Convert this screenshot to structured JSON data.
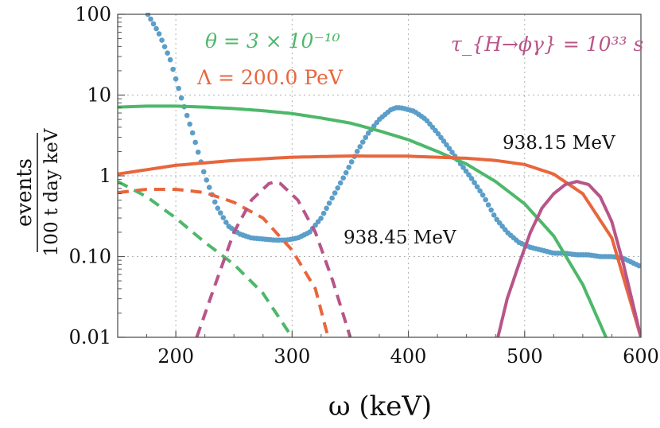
{
  "chart_data": {
    "type": "line",
    "x_label": "ω (keV)",
    "y_label_numerator": "events",
    "y_label_denominator": "100 t day keV",
    "xlim": [
      150,
      600
    ],
    "ylim": [
      0.01,
      100
    ],
    "y_scale": "log",
    "grid": true,
    "x_ticks": [
      {
        "value": 200,
        "label": "200"
      },
      {
        "value": 300,
        "label": "300"
      },
      {
        "value": 400,
        "label": "400"
      },
      {
        "value": 500,
        "label": "500"
      },
      {
        "value": 600,
        "label": "600"
      }
    ],
    "y_ticks": [
      {
        "value": 0.01,
        "label": "0.01"
      },
      {
        "value": 0.1,
        "label": "0.10"
      },
      {
        "value": 1,
        "label": "1"
      },
      {
        "value": 10,
        "label": "10"
      },
      {
        "value": 100,
        "label": "100"
      }
    ],
    "annotations": {
      "theta": "θ = 3 × 10⁻¹⁰",
      "lambda": "Λ = 200.0 PeV",
      "tau": "τ_{H→ϕγ} = 10³³ s",
      "mass_high": "938.15 MeV",
      "mass_low": "938.45 MeV"
    },
    "colors": {
      "data": "#5b9ec9",
      "green": "#4db86a",
      "orange": "#e8663d",
      "magenta": "#b85588"
    },
    "series": [
      {
        "style": "dotted",
        "color": "#5b9ec9",
        "x": [
          176,
          185,
          195,
          205,
          215,
          225,
          235,
          245,
          255,
          265,
          275,
          285,
          295,
          305,
          315,
          325,
          335,
          345,
          355,
          365,
          375,
          385,
          390,
          395,
          405,
          415,
          425,
          435,
          445,
          455,
          465,
          475,
          485,
          495,
          505,
          515,
          525,
          535,
          545,
          555,
          565,
          575,
          585,
          600
        ],
        "y": [
          100,
          60,
          28,
          9,
          3.2,
          1.0,
          0.42,
          0.24,
          0.19,
          0.17,
          0.165,
          0.16,
          0.16,
          0.17,
          0.2,
          0.3,
          0.55,
          1.0,
          1.9,
          3.3,
          5.0,
          6.6,
          7.0,
          6.9,
          6.3,
          5.0,
          3.4,
          2.2,
          1.4,
          0.9,
          0.55,
          0.3,
          0.2,
          0.15,
          0.13,
          0.12,
          0.11,
          0.11,
          0.105,
          0.105,
          0.1,
          0.1,
          0.095,
          0.075
        ]
      },
      {
        "style": "solid",
        "color": "#4db86a",
        "x": [
          150,
          175,
          200,
          225,
          250,
          275,
          300,
          325,
          350,
          375,
          400,
          425,
          450,
          475,
          500,
          525,
          550,
          570
        ],
        "y": [
          7.1,
          7.3,
          7.3,
          7.1,
          6.8,
          6.4,
          5.9,
          5.2,
          4.5,
          3.6,
          2.8,
          2.0,
          1.4,
          0.85,
          0.45,
          0.18,
          0.045,
          0.01
        ]
      },
      {
        "style": "solid",
        "color": "#e8663d",
        "x": [
          150,
          200,
          250,
          300,
          350,
          400,
          450,
          475,
          500,
          525,
          550,
          575,
          600
        ],
        "y": [
          1.05,
          1.35,
          1.55,
          1.7,
          1.76,
          1.75,
          1.65,
          1.55,
          1.38,
          1.05,
          0.6,
          0.17,
          0.01
        ]
      },
      {
        "style": "solid",
        "color": "#b85588",
        "x": [
          477,
          485,
          495,
          505,
          515,
          525,
          535,
          545,
          555,
          565,
          575,
          585,
          595,
          600
        ],
        "y": [
          0.01,
          0.03,
          0.08,
          0.2,
          0.4,
          0.6,
          0.78,
          0.85,
          0.78,
          0.55,
          0.27,
          0.08,
          0.02,
          0.01
        ]
      },
      {
        "style": "dashed",
        "color": "#4db86a",
        "x": [
          150,
          175,
          200,
          225,
          250,
          275,
          300
        ],
        "y": [
          0.85,
          0.55,
          0.3,
          0.15,
          0.08,
          0.035,
          0.01
        ]
      },
      {
        "style": "dashed",
        "color": "#e8663d",
        "x": [
          150,
          175,
          200,
          225,
          250,
          275,
          300,
          320,
          331
        ],
        "y": [
          0.62,
          0.68,
          0.68,
          0.62,
          0.47,
          0.3,
          0.12,
          0.04,
          0.01
        ]
      },
      {
        "style": "dashed",
        "color": "#b85588",
        "x": [
          218,
          235,
          250,
          265,
          280,
          285,
          290,
          305,
          320,
          335,
          350
        ],
        "y": [
          0.01,
          0.05,
          0.2,
          0.5,
          0.8,
          0.84,
          0.8,
          0.5,
          0.2,
          0.05,
          0.01
        ]
      }
    ]
  }
}
